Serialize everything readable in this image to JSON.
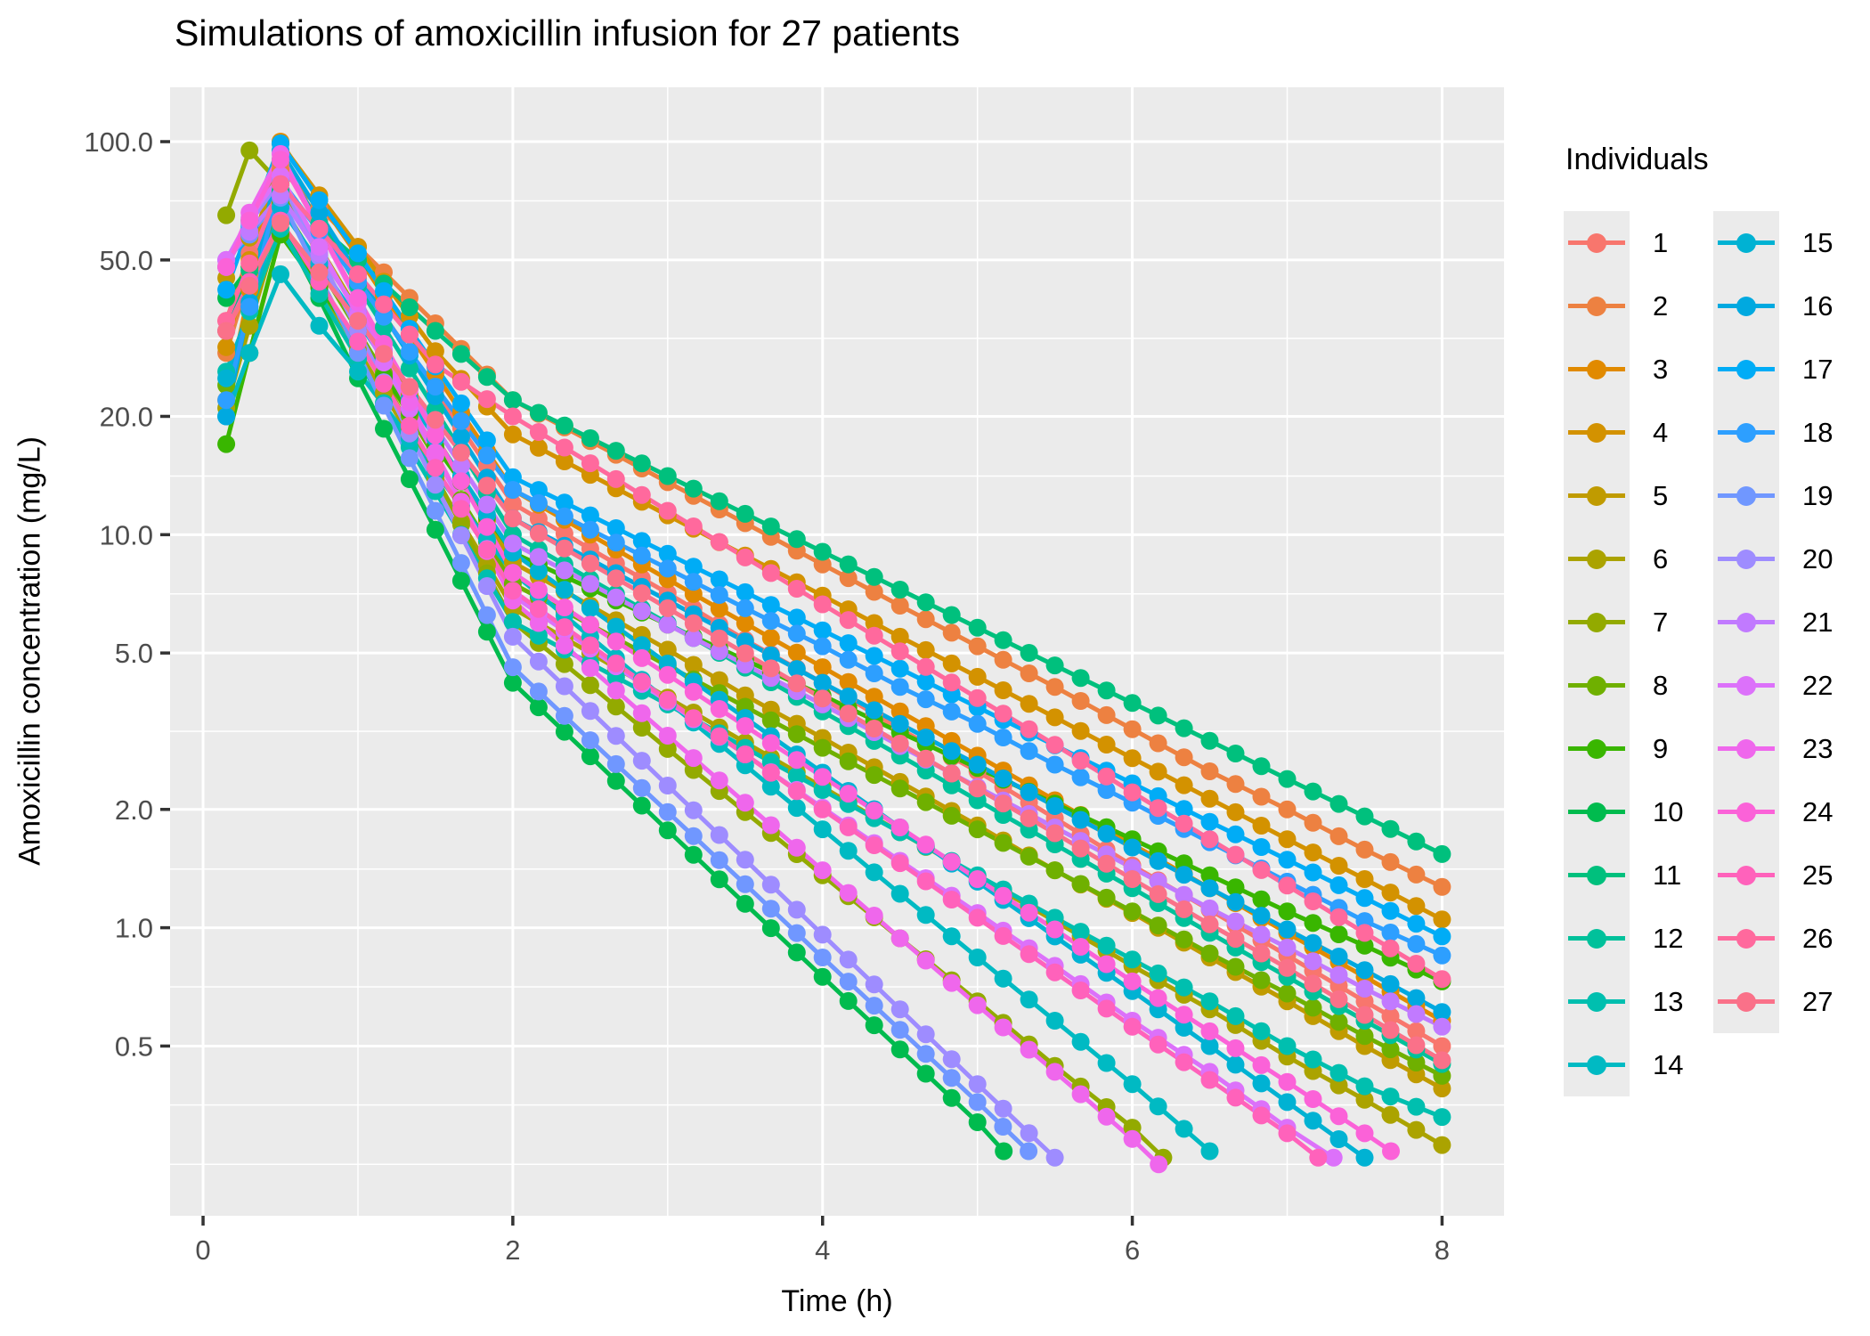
{
  "title": "Simulations of amoxicillin infusion for 27 patients",
  "axes": {
    "x_label": "Time (h)",
    "y_label": "Amoxicillin concentration (mg/L)",
    "x_tick_labels": [
      "0",
      "2",
      "4",
      "6",
      "8"
    ],
    "x_tick_values": [
      0,
      2,
      4,
      6,
      8
    ],
    "x_minor": [
      1,
      3,
      5,
      7
    ],
    "y_tick_labels": [
      "100.0",
      "50.0",
      "20.0",
      "10.0",
      "5.0",
      "2.0",
      "1.0",
      "0.5"
    ],
    "y_tick_values": [
      100,
      50,
      20,
      10,
      5,
      2,
      1,
      0.5
    ],
    "y_minor": [
      70.7,
      31.6,
      14.1,
      7.07,
      3.16,
      1.41,
      0.707,
      0.354,
      0.25
    ]
  },
  "legend": {
    "title": "Individuals",
    "columns": [
      [
        "1",
        "2",
        "3",
        "4",
        "5",
        "6",
        "7",
        "8",
        "9",
        "10",
        "11",
        "12",
        "13",
        "14"
      ],
      [
        "15",
        "16",
        "17",
        "18",
        "19",
        "20",
        "21",
        "22",
        "23",
        "24",
        "25",
        "26",
        "27"
      ]
    ]
  },
  "colors": {
    "panel_bg": "#EBEBEB",
    "grid": "#FFFFFF",
    "tick_mark": "#333333",
    "tick_label": "#4D4D4D",
    "key_bg": "#EBEBEB"
  },
  "chart_data": {
    "type": "line",
    "log_y": true,
    "title": "Simulations of amoxicillin infusion for 27 patients",
    "xlabel": "Time (h)",
    "ylabel": "Amoxicillin concentration (mg/L)",
    "xlim": [
      -0.213,
      8.4
    ],
    "ylim_log": [
      0.185,
      137.5
    ],
    "grid": "major-minor-white-on-grey",
    "legend_position": "right-two-columns",
    "t_grid": [
      0.15,
      0.3,
      0.5,
      0.75,
      1,
      1.5,
      2,
      2.5,
      3,
      3.5,
      4,
      4.5,
      5,
      5.5,
      6,
      6.5,
      7,
      7.5,
      8
    ],
    "series": [
      {
        "name": "1",
        "color": "#F8766D",
        "y": [
          35,
          52,
          88,
          63,
          45,
          23.3,
          12,
          9.2,
          7.1,
          5.4,
          4.2,
          3.2,
          2.5,
          1.9,
          1.44,
          1.11,
          0.85,
          0.65,
          0.5
        ]
      },
      {
        "name": "2",
        "color": "#ED8141",
        "y": [
          29,
          46,
          85,
          68,
          54,
          34.5,
          22,
          17.3,
          13.6,
          10.7,
          8.4,
          6.6,
          5.2,
          4.1,
          3.2,
          2.5,
          2.0,
          1.58,
          1.27
        ]
      },
      {
        "name": "3",
        "color": "#E18A00",
        "y": [
          22,
          42,
          100,
          71,
          51,
          25.7,
          13,
          10,
          7.7,
          5.95,
          4.6,
          3.55,
          2.74,
          2.11,
          1.63,
          1.26,
          0.97,
          0.75,
          0.58
        ]
      },
      {
        "name": "4",
        "color": "#D39200",
        "y": [
          30,
          50,
          99,
          73,
          54,
          29.3,
          18,
          14.2,
          11.2,
          8.85,
          7.0,
          5.5,
          4.35,
          3.43,
          2.7,
          2.13,
          1.68,
          1.33,
          1.05
        ]
      },
      {
        "name": "5",
        "color": "#C09B00",
        "y": [
          45,
          57,
          78,
          54,
          37,
          17.8,
          8.5,
          6.6,
          5.1,
          3.9,
          3.04,
          2.35,
          1.82,
          1.4,
          1.09,
          0.84,
          0.65,
          0.5,
          0.39
        ]
      },
      {
        "name": "6",
        "color": "#ABA300",
        "y": [
          21,
          34,
          63,
          43,
          29.5,
          13.9,
          6.5,
          5.0,
          3.85,
          2.96,
          2.28,
          1.75,
          1.35,
          1.04,
          0.8,
          0.62,
          0.47,
          0.365,
          0.28
        ]
      },
      {
        "name": "7",
        "color": "#93AA00",
        "t": [
          0.15,
          0.3,
          0.5,
          0.75,
          1,
          1.5,
          2,
          2.5,
          3,
          3.5,
          4,
          4.5,
          5,
          5.5,
          6,
          6.2
        ],
        "y": [
          65,
          95,
          78,
          51,
          33,
          14.1,
          6,
          4.14,
          2.85,
          1.97,
          1.36,
          0.94,
          0.65,
          0.445,
          0.31,
          0.26
        ]
      },
      {
        "name": "8",
        "color": "#6FB000",
        "y": [
          24,
          38,
          70,
          48,
          33,
          15.7,
          7.5,
          5.9,
          4.64,
          3.65,
          2.87,
          2.26,
          1.78,
          1.4,
          1.1,
          0.86,
          0.68,
          0.53,
          0.42
        ]
      },
      {
        "name": "9",
        "color": "#39B600",
        "y": [
          17,
          29,
          58,
          42.5,
          31,
          16.8,
          9,
          7.3,
          5.9,
          4.8,
          3.9,
          3.14,
          2.55,
          2.07,
          1.68,
          1.36,
          1.1,
          0.9,
          0.73
        ]
      },
      {
        "name": "10",
        "color": "#00BB4E",
        "t": [
          0.15,
          0.3,
          0.5,
          0.75,
          1,
          1.5,
          2,
          2.5,
          3,
          3.5,
          4,
          4.5,
          5,
          5.17
        ],
        "y": [
          40,
          48,
          62,
          40,
          25,
          10.3,
          4.2,
          2.73,
          1.77,
          1.15,
          0.75,
          0.49,
          0.32,
          0.27
        ]
      },
      {
        "name": "11",
        "color": "#00C07D",
        "y": [
          33,
          47,
          75,
          61,
          50,
          33,
          22,
          17.6,
          14.1,
          11.3,
          9.05,
          7.25,
          5.8,
          4.65,
          3.73,
          2.99,
          2.39,
          1.92,
          1.54
        ]
      },
      {
        "name": "12",
        "color": "#00C19B",
        "y": [
          48,
          63,
          90,
          62,
          43,
          20.8,
          10,
          7.7,
          5.95,
          4.59,
          3.55,
          2.74,
          2.11,
          1.63,
          1.26,
          0.97,
          0.75,
          0.58,
          0.45
        ]
      },
      {
        "name": "13",
        "color": "#00BFAF",
        "y": [
          26,
          37,
          60,
          41,
          28,
          12.9,
          6,
          4.7,
          3.7,
          2.87,
          2.24,
          1.75,
          1.36,
          1.06,
          0.83,
          0.65,
          0.5,
          0.395,
          0.33
        ]
      },
      {
        "name": "14",
        "color": "#00BAC3",
        "t": [
          0.15,
          0.3,
          0.5,
          0.75,
          1,
          1.5,
          2,
          2.5,
          3,
          3.5,
          4,
          4.5,
          5,
          5.5,
          6,
          6.5
        ],
        "y": [
          20,
          29,
          46,
          34,
          26,
          14.4,
          8,
          5.5,
          3.77,
          2.59,
          1.78,
          1.22,
          0.84,
          0.58,
          0.4,
          0.27
        ]
      },
      {
        "name": "15",
        "color": "#00B2D3",
        "t": [
          0.15,
          0.3,
          0.5,
          0.75,
          1,
          1.5,
          2,
          2.5,
          3,
          3.5,
          4,
          4.5,
          5,
          5.5,
          6,
          6.5,
          7,
          7.5
        ],
        "y": [
          25,
          38,
          68,
          49,
          35,
          17.6,
          9,
          6.5,
          4.7,
          3.42,
          2.48,
          1.8,
          1.31,
          0.95,
          0.69,
          0.5,
          0.36,
          0.26
        ]
      },
      {
        "name": "16",
        "color": "#00A9E0",
        "y": [
          20,
          39,
          95,
          66,
          46,
          22.5,
          11,
          8.65,
          6.8,
          5.35,
          4.2,
          3.3,
          2.6,
          2.04,
          1.6,
          1.26,
          0.99,
          0.78,
          0.61
        ]
      },
      {
        "name": "17",
        "color": "#00ACF6",
        "y": [
          42,
          61,
          99,
          71,
          52,
          26.8,
          14,
          11.2,
          8.94,
          7.14,
          5.71,
          4.56,
          3.64,
          2.91,
          2.33,
          1.86,
          1.49,
          1.19,
          0.95
        ]
      },
      {
        "name": "18",
        "color": "#2D9FFF",
        "y": [
          22,
          38,
          80,
          59,
          44,
          23.8,
          13,
          10.3,
          8.2,
          6.5,
          5.2,
          4.1,
          3.3,
          2.6,
          2.08,
          1.65,
          1.31,
          1.04,
          0.85
        ]
      },
      {
        "name": "19",
        "color": "#7097FF",
        "t": [
          0.15,
          0.3,
          0.5,
          0.75,
          1,
          1.5,
          2,
          2.5,
          3,
          3.5,
          4,
          4.5,
          5,
          5.33
        ],
        "y": [
          50,
          58,
          72,
          45.5,
          29,
          11.5,
          4.6,
          3.0,
          1.97,
          1.29,
          0.84,
          0.55,
          0.36,
          0.27
        ]
      },
      {
        "name": "20",
        "color": "#9E8CFF",
        "t": [
          0.15,
          0.3,
          0.5,
          0.75,
          1,
          1.5,
          2,
          2.5,
          3,
          3.5,
          4,
          4.5,
          5,
          5.5
        ],
        "y": [
          48,
          62,
          80,
          51,
          33,
          13.4,
          5.5,
          3.56,
          2.3,
          1.49,
          0.96,
          0.62,
          0.4,
          0.26
        ]
      },
      {
        "name": "21",
        "color": "#C17AFF",
        "y": [
          50,
          59,
          73,
          52,
          37,
          18.8,
          9.5,
          7.5,
          5.9,
          4.67,
          3.7,
          2.9,
          2.28,
          1.8,
          1.42,
          1.12,
          0.89,
          0.7,
          0.56
        ]
      },
      {
        "name": "22",
        "color": "#DC71FA",
        "t": [
          0.15,
          0.3,
          0.5,
          0.75,
          1,
          1.5,
          2,
          2.5,
          3,
          3.5,
          4,
          4.5,
          5,
          5.5,
          6,
          6.5,
          7,
          7.3
        ],
        "y": [
          50,
          64,
          82,
          54,
          36,
          15.9,
          7,
          5.13,
          3.76,
          2.76,
          2.02,
          1.48,
          1.09,
          0.8,
          0.58,
          0.43,
          0.31,
          0.26
        ]
      },
      {
        "name": "23",
        "color": "#EF67EC",
        "t": [
          0.15,
          0.3,
          0.5,
          0.75,
          1,
          1.5,
          2,
          2.5,
          3,
          3.5,
          4,
          4.5,
          5,
          5.5,
          6,
          6.17
        ],
        "y": [
          48,
          66,
          93,
          60,
          39,
          16.2,
          6.8,
          4.58,
          3.08,
          2.08,
          1.4,
          0.94,
          0.635,
          0.43,
          0.29,
          0.25
        ]
      },
      {
        "name": "24",
        "color": "#FB62D8",
        "t": [
          0.15,
          0.3,
          0.5,
          0.75,
          1,
          1.5,
          2,
          2.5,
          3,
          3.5,
          4,
          4.5,
          5,
          5.5,
          6,
          6.5,
          7,
          7.5,
          7.67
        ],
        "y": [
          48,
          63,
          90,
          60,
          40,
          17.9,
          8,
          5.9,
          4.4,
          3.26,
          2.42,
          1.8,
          1.33,
          0.99,
          0.73,
          0.545,
          0.405,
          0.3,
          0.27
        ]
      },
      {
        "name": "25",
        "color": "#FF62BB",
        "t": [
          0.15,
          0.3,
          0.5,
          0.75,
          1,
          1.5,
          2,
          2.5,
          3,
          3.5,
          4,
          4.5,
          5,
          5.5,
          6,
          6.5,
          7,
          7.2
        ],
        "y": [
          33,
          44,
          63,
          44,
          31,
          14.8,
          7.2,
          5.23,
          3.8,
          2.76,
          2.0,
          1.46,
          1.06,
          0.77,
          0.56,
          0.41,
          0.3,
          0.26
        ]
      },
      {
        "name": "26",
        "color": "#FF699D",
        "y": [
          35,
          49,
          78,
          60,
          46,
          27.1,
          20,
          15.2,
          11.5,
          8.75,
          6.65,
          5.05,
          3.84,
          2.92,
          2.21,
          1.68,
          1.28,
          0.97,
          0.74
        ]
      },
      {
        "name": "27",
        "color": "#FA7189",
        "y": [
          33,
          43,
          62,
          46.5,
          35,
          19.6,
          11,
          8.45,
          6.5,
          4.99,
          3.83,
          2.94,
          2.26,
          1.74,
          1.33,
          1.02,
          0.79,
          0.6,
          0.46
        ]
      }
    ]
  }
}
